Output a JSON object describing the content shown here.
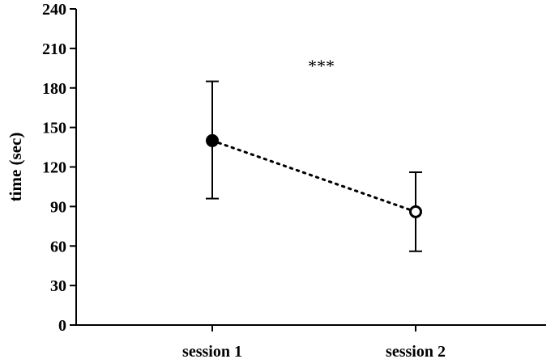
{
  "chart_data": {
    "type": "line",
    "title": "",
    "xlabel": "",
    "ylabel": "time (sec)",
    "ylim": [
      0,
      240
    ],
    "yticks": [
      0,
      30,
      60,
      90,
      120,
      150,
      180,
      210,
      240
    ],
    "categories": [
      "session 1",
      "session 2"
    ],
    "grid": false,
    "series": [
      {
        "values": [
          140,
          86
        ],
        "error_low": [
          96,
          56
        ],
        "error_high": [
          185,
          116
        ],
        "marker_fill": [
          "#000000",
          "#ffffff"
        ],
        "line_style": "dotted"
      }
    ],
    "annotations": [
      {
        "text": "***",
        "x_between": [
          "session 1",
          "session 2"
        ],
        "y": 197
      }
    ],
    "colors": {
      "axis": "#000000",
      "line": "#000000"
    }
  }
}
